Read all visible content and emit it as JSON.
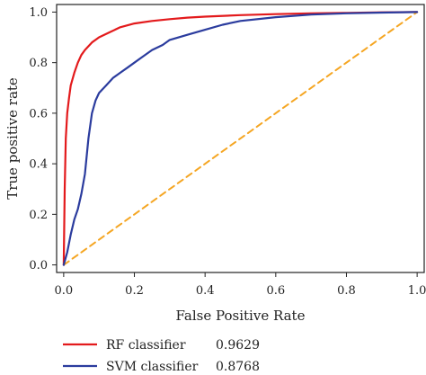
{
  "chart_data": {
    "type": "line",
    "xlabel": "False Positive Rate",
    "ylabel": "True positive rate",
    "xlim": [
      -0.02,
      1.02
    ],
    "ylim": [
      -0.03,
      1.03
    ],
    "xticks": [
      "0.0",
      "0.2",
      "0.4",
      "0.6",
      "0.8",
      "1.0"
    ],
    "yticks": [
      "0.0",
      "0.2",
      "0.4",
      "0.6",
      "0.8",
      "1.0"
    ],
    "grid": false,
    "legend_position": "below",
    "series": [
      {
        "name": "RF classifier",
        "score": "0.9629",
        "color": "#e31a1c",
        "x": [
          0,
          0.003,
          0.006,
          0.01,
          0.015,
          0.02,
          0.03,
          0.04,
          0.05,
          0.06,
          0.08,
          0.1,
          0.13,
          0.16,
          0.2,
          0.25,
          0.3,
          0.35,
          0.4,
          0.5,
          0.6,
          0.7,
          0.8,
          0.9,
          1.0
        ],
        "y": [
          0,
          0.3,
          0.5,
          0.6,
          0.66,
          0.71,
          0.76,
          0.8,
          0.83,
          0.85,
          0.88,
          0.9,
          0.92,
          0.94,
          0.955,
          0.965,
          0.972,
          0.978,
          0.982,
          0.988,
          0.992,
          0.995,
          0.997,
          0.999,
          1.0
        ]
      },
      {
        "name": "SVM classifier",
        "score": "0.8768",
        "color": "#2b3c9e",
        "x": [
          0,
          0.01,
          0.02,
          0.03,
          0.04,
          0.05,
          0.06,
          0.07,
          0.08,
          0.09,
          0.1,
          0.12,
          0.14,
          0.16,
          0.18,
          0.2,
          0.22,
          0.25,
          0.28,
          0.3,
          0.35,
          0.4,
          0.45,
          0.5,
          0.6,
          0.7,
          0.8,
          0.9,
          1.0
        ],
        "y": [
          0,
          0.05,
          0.12,
          0.18,
          0.22,
          0.28,
          0.36,
          0.5,
          0.6,
          0.65,
          0.68,
          0.71,
          0.74,
          0.76,
          0.78,
          0.8,
          0.82,
          0.85,
          0.87,
          0.89,
          0.91,
          0.93,
          0.95,
          0.965,
          0.98,
          0.99,
          0.995,
          0.998,
          1.0
        ]
      },
      {
        "name": "",
        "color": "#f5a623",
        "dashed": true,
        "x": [
          0,
          1
        ],
        "y": [
          0,
          1
        ]
      }
    ]
  }
}
